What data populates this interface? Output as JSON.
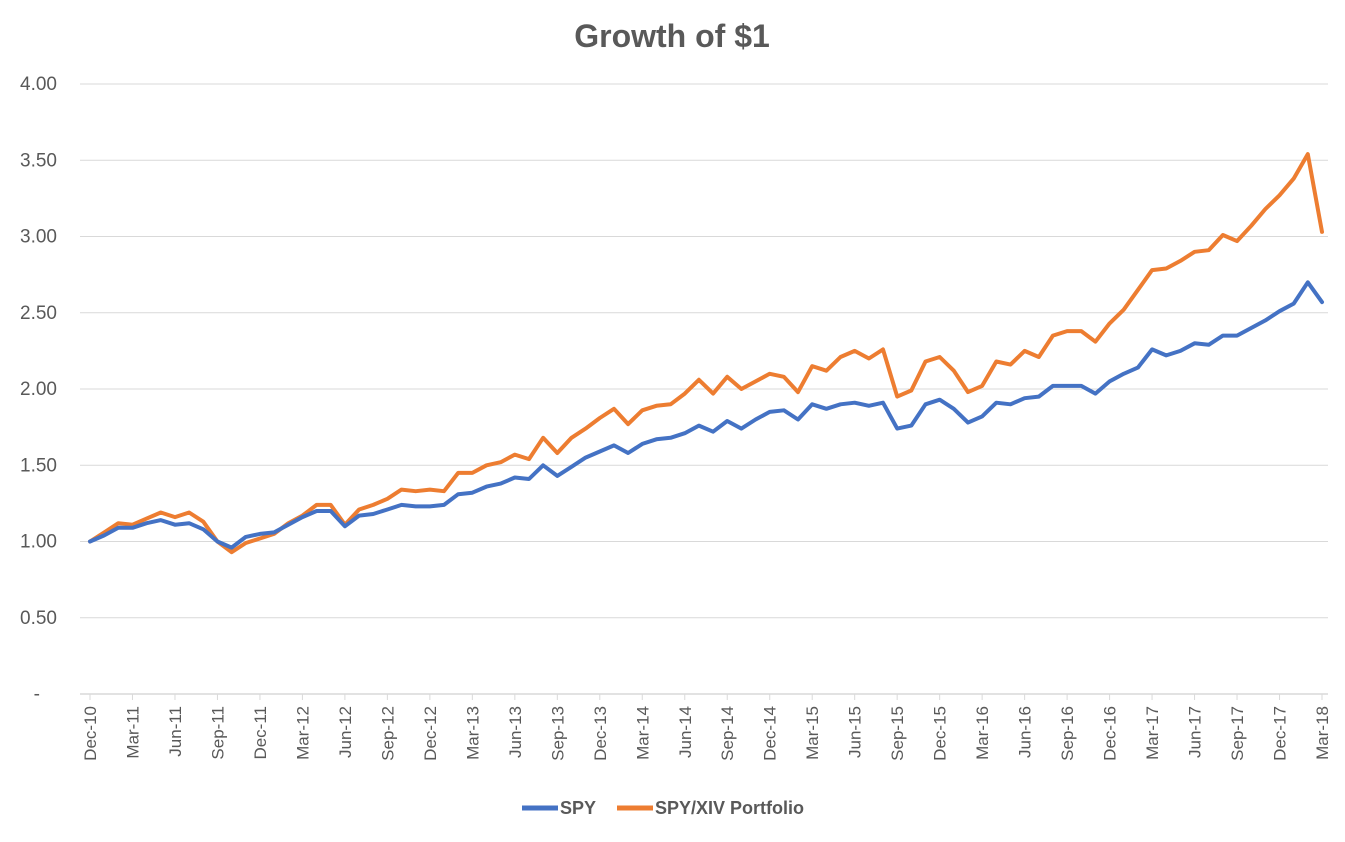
{
  "chart_data": {
    "type": "line",
    "title": "Growth of $1",
    "ylim": [
      0,
      4
    ],
    "y_ticks": [
      {
        "value": 0,
        "label": "-"
      },
      {
        "value": 0.5,
        "label": "0.50"
      },
      {
        "value": 1,
        "label": "1.00"
      },
      {
        "value": 1.5,
        "label": "1.50"
      },
      {
        "value": 2,
        "label": "2.00"
      },
      {
        "value": 2.5,
        "label": "2.50"
      },
      {
        "value": 3,
        "label": "3.00"
      },
      {
        "value": 3.5,
        "label": "3.50"
      },
      {
        "value": 4,
        "label": "4.00"
      }
    ],
    "grid": true,
    "legend_position": "bottom",
    "x_start": "Dec-10",
    "x_end": "Mar-18",
    "x_tick_labels": [
      "Dec-10",
      "Mar-11",
      "Jun-11",
      "Sep-11",
      "Dec-11",
      "Mar-12",
      "Jun-12",
      "Sep-12",
      "Dec-12",
      "Mar-13",
      "Jun-13",
      "Sep-13",
      "Dec-13",
      "Mar-14",
      "Jun-14",
      "Sep-14",
      "Dec-14",
      "Mar-15",
      "Jun-15",
      "Sep-15",
      "Dec-15",
      "Mar-16",
      "Jun-16",
      "Sep-16",
      "Dec-16",
      "Mar-17",
      "Jun-17",
      "Sep-17",
      "Dec-17",
      "Mar-18"
    ],
    "series": [
      {
        "name": "SPY",
        "color": "#4472C4",
        "values": [
          1.0,
          1.04,
          1.09,
          1.09,
          1.12,
          1.14,
          1.11,
          1.12,
          1.08,
          1.0,
          0.96,
          1.03,
          1.05,
          1.06,
          1.11,
          1.16,
          1.2,
          1.2,
          1.1,
          1.17,
          1.18,
          1.21,
          1.24,
          1.23,
          1.23,
          1.24,
          1.31,
          1.32,
          1.36,
          1.38,
          1.42,
          1.41,
          1.5,
          1.43,
          1.49,
          1.55,
          1.59,
          1.63,
          1.58,
          1.64,
          1.67,
          1.68,
          1.71,
          1.76,
          1.72,
          1.79,
          1.74,
          1.8,
          1.85,
          1.86,
          1.8,
          1.9,
          1.87,
          1.9,
          1.91,
          1.89,
          1.91,
          1.74,
          1.76,
          1.9,
          1.93,
          1.87,
          1.78,
          1.82,
          1.91,
          1.9,
          1.94,
          1.95,
          2.02,
          2.02,
          2.02,
          1.97,
          2.05,
          2.1,
          2.14,
          2.26,
          2.22,
          2.25,
          2.3,
          2.29,
          2.35,
          2.35,
          2.4,
          2.45,
          2.51,
          2.56,
          2.7,
          2.57
        ]
      },
      {
        "name": "SPY/XIV Portfolio",
        "color": "#ED7D31",
        "values": [
          1.0,
          1.06,
          1.12,
          1.11,
          1.15,
          1.19,
          1.16,
          1.19,
          1.13,
          1.0,
          0.93,
          0.99,
          1.02,
          1.05,
          1.12,
          1.17,
          1.24,
          1.24,
          1.11,
          1.21,
          1.24,
          1.28,
          1.34,
          1.33,
          1.34,
          1.33,
          1.45,
          1.45,
          1.5,
          1.52,
          1.57,
          1.54,
          1.68,
          1.58,
          1.68,
          1.74,
          1.81,
          1.87,
          1.77,
          1.86,
          1.89,
          1.9,
          1.97,
          2.06,
          1.97,
          2.08,
          2.0,
          2.05,
          2.1,
          2.08,
          1.98,
          2.15,
          2.12,
          2.21,
          2.25,
          2.2,
          2.26,
          1.95,
          1.99,
          2.18,
          2.21,
          2.12,
          1.98,
          2.02,
          2.18,
          2.16,
          2.25,
          2.21,
          2.35,
          2.38,
          2.38,
          2.31,
          2.43,
          2.52,
          2.65,
          2.78,
          2.79,
          2.84,
          2.9,
          2.91,
          3.01,
          2.97,
          3.07,
          3.18,
          3.27,
          3.38,
          3.54,
          3.03
        ]
      }
    ]
  }
}
